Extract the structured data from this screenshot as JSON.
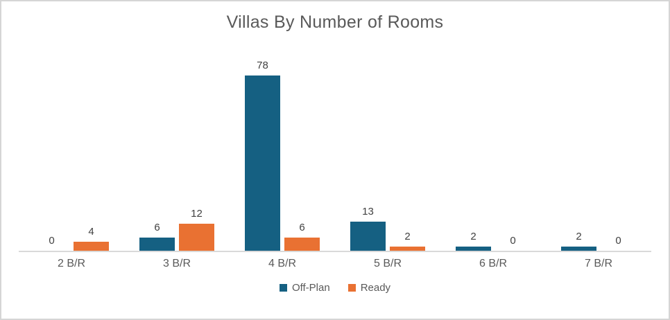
{
  "chart_data": {
    "type": "bar",
    "title": "Villas By Number of Rooms",
    "categories": [
      "2 B/R",
      "3 B/R",
      "4 B/R",
      "5 B/R",
      "6 B/R",
      "7 B/R"
    ],
    "series": [
      {
        "name": "Off-Plan",
        "color": "#156082",
        "values": [
          0,
          6,
          78,
          13,
          2,
          2
        ]
      },
      {
        "name": "Ready",
        "color": "#E97132",
        "values": [
          4,
          12,
          6,
          2,
          0,
          0
        ]
      }
    ],
    "xlabel": "",
    "ylabel": "",
    "ylim": [
      0,
      78
    ],
    "grid": false,
    "data_labels": true,
    "legend_position": "bottom",
    "axis_line_color": "#D9D9D9",
    "title_color": "#595959",
    "label_color": "#404040"
  }
}
